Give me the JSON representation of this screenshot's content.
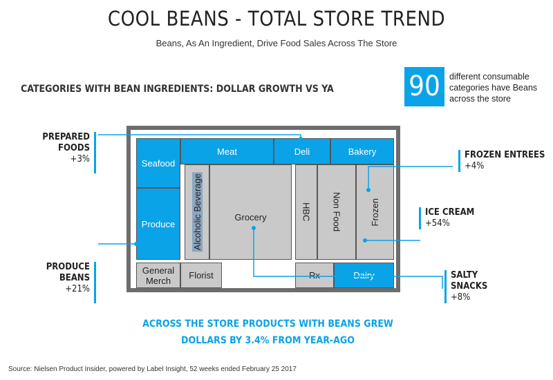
{
  "title": "COOL BEANS - TOTAL STORE TREND",
  "subtitle": "Beans, As An Ingredient, Drive Food Sales Across The Store",
  "section_heading": "CATEGORIES WITH BEAN INGREDIENTS: DOLLAR GROWTH VS YA",
  "stat": {
    "number": "90",
    "text": "different consumable categories have Beans across the store"
  },
  "store": {
    "seafood": "Seafood",
    "meat": "Meat",
    "deli": "Deli",
    "bakery": "Bakery",
    "produce": "Produce",
    "alcoholic_beverage": "Alcoholic Beverage",
    "grocery": "Grocery",
    "hbc": "HBC",
    "non_food": "Non Food",
    "frozen": "Frozen",
    "general_merch": "General Merch",
    "florist": "Florist",
    "rx": "Rx",
    "dairy": "Dairy"
  },
  "callouts": {
    "prepared_foods": {
      "label": "PREPARED FOODS",
      "value": "+3%"
    },
    "produce_beans": {
      "label": "PRODUCE BEANS",
      "value": "+21%"
    },
    "frozen_entrees": {
      "label": "FROZEN ENTREES",
      "value": "+4%"
    },
    "ice_cream": {
      "label": "ICE CREAM",
      "value": "+54%"
    },
    "salty_snacks": {
      "label": "SALTY SNACKS",
      "value": "+8%"
    }
  },
  "growth": {
    "line1": "ACROSS THE STORE PRODUCTS WITH BEANS GREW",
    "line2": "DOLLARS BY 3.4% FROM YEAR-AGO"
  },
  "source": "Source: Nielsen Product Insider, powered by Label Insight, 52 weeks ended February 25 2017",
  "colors": {
    "accent": "#0aa3e8",
    "grey_cell": "#c9c9c9",
    "border": "#6d6d6d"
  }
}
